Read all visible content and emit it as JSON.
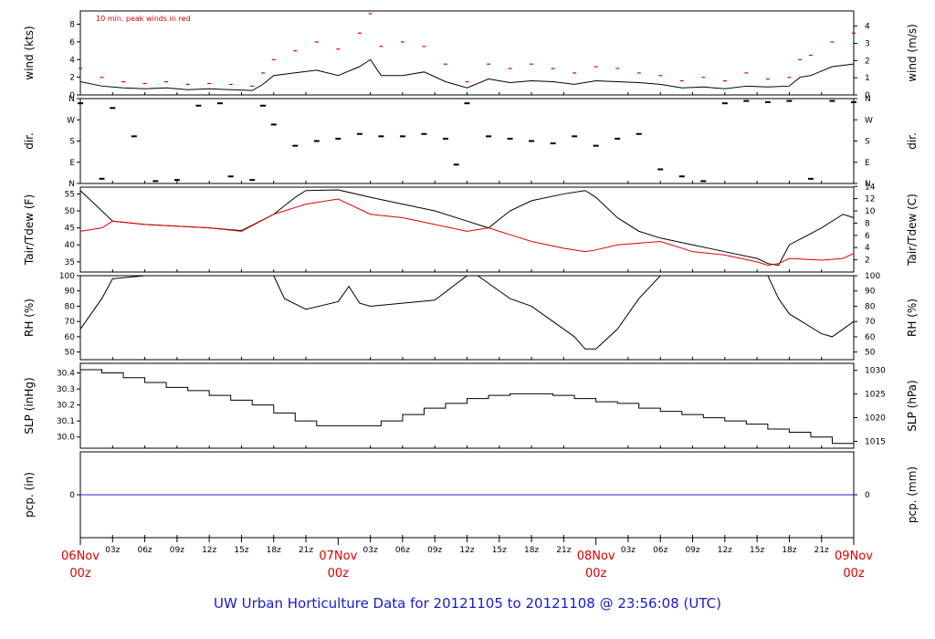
{
  "title": "UW Urban Horticulture Data for 20121105  to  20121108 @ 23:56:08  (UTC)",
  "chart_data": {
    "type": "line",
    "x_axis": {
      "range_hours": [
        0,
        72
      ],
      "hour_ticks": [
        "03z",
        "06z",
        "09z",
        "12z",
        "15z",
        "18z",
        "21z",
        "03z",
        "06z",
        "09z",
        "12z",
        "15z",
        "18z",
        "21z",
        "03z",
        "06z",
        "09z",
        "12z",
        "15z",
        "18z",
        "21z"
      ],
      "hour_tick_positions": [
        3,
        6,
        9,
        12,
        15,
        18,
        21,
        27,
        30,
        33,
        36,
        39,
        42,
        45,
        51,
        54,
        57,
        60,
        63,
        66,
        69
      ],
      "day_labels": [
        {
          "line1": "06Nov",
          "line2": "00z",
          "hour": 0
        },
        {
          "line1": "07Nov",
          "line2": "00z",
          "hour": 24
        },
        {
          "line1": "08Nov",
          "line2": "00z",
          "hour": 48
        },
        {
          "line1": "09Nov",
          "line2": "00z",
          "hour": 72
        }
      ]
    },
    "panels": [
      {
        "id": "wind",
        "ylabel_left": "wind (kts)",
        "ylabel_right": "wind (m/s)",
        "ylim": [
          0,
          9.5
        ],
        "left_ticks": [
          "0",
          "2",
          "4",
          "6",
          "8"
        ],
        "left_tick_values": [
          0,
          2,
          4,
          6,
          8
        ],
        "right_ticks": [
          "0",
          "1",
          "2",
          "3",
          "4"
        ],
        "right_tick_values": [
          0,
          1,
          2,
          3,
          4
        ],
        "annotation": "10 min. peak winds in red",
        "series": [
          {
            "color": "#000000",
            "style": "line",
            "x_hours": [
              0,
              2,
              4,
              6,
              8,
              10,
              12,
              14,
              16,
              17,
              18,
              20,
              22,
              24,
              26,
              27,
              28,
              30,
              32,
              34,
              36,
              38,
              40,
              42,
              44,
              46,
              48,
              50,
              52,
              54,
              56,
              58,
              60,
              62,
              64,
              66,
              67,
              68,
              70,
              72
            ],
            "values": [
              1.5,
              1,
              0.8,
              0.7,
              0.8,
              0.6,
              0.7,
              0.6,
              0.5,
              1.2,
              2.2,
              2.5,
              2.8,
              2.2,
              3.2,
              4,
              2.2,
              2.2,
              2.6,
              1.5,
              0.8,
              1.8,
              1.4,
              1.6,
              1.5,
              1.2,
              1.6,
              1.5,
              1.4,
              1.2,
              0.8,
              0.9,
              0.7,
              1.0,
              0.9,
              1.0,
              2.0,
              2.2,
              3.2,
              3.5
            ]
          },
          {
            "color": "#e00000",
            "style": "dots",
            "x_hours": [
              0,
              2,
              4,
              6,
              8,
              10,
              12,
              14,
              16,
              17,
              18,
              20,
              22,
              24,
              26,
              27,
              28,
              30,
              32,
              34,
              36,
              38,
              40,
              42,
              44,
              46,
              48,
              50,
              52,
              54,
              56,
              58,
              60,
              62,
              64,
              66,
              67,
              68,
              70,
              72
            ],
            "values": [
              3,
              2,
              1.5,
              1.3,
              1.5,
              1.2,
              1.3,
              1.2,
              1,
              2.5,
              4,
              5,
              6,
              5.2,
              7,
              9.2,
              5.5,
              6,
              5.5,
              3.5,
              1.5,
              3.5,
              3,
              3.5,
              3,
              2.5,
              3.2,
              3,
              2.5,
              2.2,
              1.6,
              2,
              1.6,
              2.5,
              1.8,
              2,
              4,
              4.5,
              6,
              7
            ]
          }
        ]
      },
      {
        "id": "dir",
        "ylabel_left": "dir.",
        "ylabel_right": "dir.",
        "ylim": [
          0,
          360
        ],
        "left_ticks": [
          "N",
          "E",
          "S",
          "W",
          "N"
        ],
        "left_tick_values": [
          0,
          90,
          180,
          270,
          360
        ],
        "right_ticks": [
          "N",
          "E",
          "S",
          "W",
          "N"
        ],
        "right_tick_values": [
          0,
          90,
          180,
          270,
          360
        ],
        "series": [
          {
            "color": "#000000",
            "style": "dots",
            "x_hours": [
              0,
              2,
              3,
              5,
              7,
              9,
              11,
              13,
              14,
              16,
              17,
              18,
              20,
              22,
              24,
              26,
              28,
              30,
              32,
              34,
              35,
              36,
              38,
              40,
              42,
              44,
              46,
              48,
              50,
              52,
              54,
              56,
              58,
              60,
              62,
              64,
              66,
              68,
              70,
              72
            ],
            "values": [
              340,
              20,
              320,
              200,
              10,
              15,
              330,
              340,
              30,
              15,
              330,
              250,
              160,
              180,
              190,
              210,
              200,
              200,
              210,
              190,
              80,
              340,
              200,
              190,
              180,
              170,
              200,
              160,
              190,
              210,
              60,
              30,
              10,
              340,
              350,
              345,
              350,
              20,
              350,
              345
            ]
          }
        ]
      },
      {
        "id": "temp",
        "ylabel_left": "Tair/Tdew (F)",
        "ylabel_right": "Tair/Tdew (C)",
        "ylim": [
          32,
          57
        ],
        "left_ticks": [
          "35",
          "40",
          "45",
          "50",
          "55"
        ],
        "left_tick_values": [
          35,
          40,
          45,
          50,
          55
        ],
        "right_ticks": [
          "2",
          "4",
          "6",
          "8",
          "10",
          "12",
          "14"
        ],
        "right_tick_values": [
          2,
          4,
          6,
          8,
          10,
          12,
          14
        ],
        "series": [
          {
            "name": "Tair",
            "color": "#000000",
            "style": "line",
            "x_hours": [
              0,
              2,
              3,
              6,
              9,
              12,
              15,
              18,
              20,
              21,
              24,
              27,
              30,
              33,
              36,
              38,
              40,
              42,
              45,
              47,
              48,
              50,
              52,
              54,
              57,
              60,
              63,
              64,
              65,
              66,
              69,
              71,
              72
            ],
            "values": [
              56,
              50,
              47,
              46,
              45.5,
              45,
              44.2,
              49,
              54,
              56,
              56.2,
              54,
              52,
              50,
              47,
              45,
              50,
              53,
              55,
              56,
              54,
              48,
              44,
              42,
              40,
              38,
              36,
              34.5,
              34,
              40,
              45,
              49,
              48
            ]
          },
          {
            "name": "Tdew",
            "color": "#e00000",
            "style": "line",
            "x_hours": [
              0,
              2,
              3,
              6,
              9,
              12,
              15,
              18,
              20,
              21,
              24,
              27,
              30,
              33,
              36,
              38,
              40,
              42,
              45,
              47,
              48,
              50,
              52,
              54,
              57,
              60,
              63,
              64,
              65,
              66,
              69,
              71,
              72
            ],
            "values": [
              44,
              45,
              47,
              46,
              45.5,
              45,
              44,
              49,
              51,
              52,
              53.5,
              49,
              48,
              46,
              44,
              45,
              43,
              41,
              39,
              38,
              38.5,
              40,
              40.5,
              41,
              38,
              37,
              35,
              34,
              34.5,
              36,
              35.5,
              36,
              37.5
            ]
          }
        ]
      },
      {
        "id": "rh",
        "ylabel_left": "RH (%)",
        "ylabel_right": "RH (%)",
        "ylim": [
          45,
          100
        ],
        "left_ticks": [
          "50",
          "60",
          "70",
          "80",
          "90",
          "100"
        ],
        "left_tick_values": [
          50,
          60,
          70,
          80,
          90,
          100
        ],
        "right_ticks": [
          "50",
          "60",
          "70",
          "80",
          "90",
          "100"
        ],
        "right_tick_values": [
          50,
          60,
          70,
          80,
          90,
          100
        ],
        "series": [
          {
            "color": "#000000",
            "style": "line",
            "x_hours": [
              0,
              1,
              2,
              3,
              6,
              9,
              12,
              15,
              17,
              18,
              19,
              21,
              24,
              25,
              26,
              27,
              30,
              33,
              36,
              37,
              39,
              40,
              42,
              44,
              46,
              47,
              48,
              50,
              52,
              54,
              57,
              60,
              63,
              64,
              65,
              66,
              69,
              70,
              72
            ],
            "values": [
              65,
              75,
              85,
              98,
              100,
              100,
              100,
              100,
              100,
              100,
              85,
              78,
              83,
              93,
              82,
              80,
              82,
              84,
              100,
              100,
              90,
              85,
              80,
              70,
              60,
              52,
              52,
              65,
              85,
              100,
              100,
              100,
              100,
              100,
              85,
              75,
              62,
              60,
              70
            ]
          }
        ]
      },
      {
        "id": "slp",
        "ylabel_left": "SLP (inHg)",
        "ylabel_right": "SLP (hPa)",
        "ylim": [
          29.93,
          30.46
        ],
        "left_ticks": [
          "30.0",
          "30.1",
          "30.2",
          "30.3",
          "30.4"
        ],
        "left_tick_values": [
          30.0,
          30.1,
          30.2,
          30.3,
          30.4
        ],
        "right_ticks": [
          "1015",
          "1020",
          "1025",
          "1030"
        ],
        "right_tick_values": [
          1015,
          1020,
          1025,
          1030
        ],
        "series": [
          {
            "color": "#000000",
            "style": "step",
            "x_hours": [
              0,
              2,
              4,
              6,
              8,
              10,
              12,
              14,
              16,
              18,
              20,
              22,
              24,
              26,
              28,
              30,
              32,
              34,
              36,
              38,
              40,
              42,
              44,
              46,
              48,
              50,
              52,
              54,
              56,
              58,
              60,
              62,
              64,
              66,
              68,
              70,
              72
            ],
            "values": [
              30.42,
              30.4,
              30.37,
              30.34,
              30.31,
              30.29,
              30.26,
              30.23,
              30.2,
              30.15,
              30.1,
              30.07,
              30.07,
              30.07,
              30.1,
              30.14,
              30.18,
              30.21,
              30.24,
              30.26,
              30.27,
              30.27,
              30.26,
              30.24,
              30.22,
              30.21,
              30.18,
              30.16,
              30.14,
              30.12,
              30.1,
              30.08,
              30.05,
              30.03,
              30.0,
              29.96,
              29.96
            ]
          }
        ]
      },
      {
        "id": "pcp",
        "ylabel_left": "pcp. (in)",
        "ylabel_right": "pcp. (mm)",
        "ylim": [
          -1,
          1
        ],
        "left_ticks": [
          "0"
        ],
        "left_tick_values": [
          0
        ],
        "right_ticks": [
          "0"
        ],
        "right_tick_values": [
          0
        ],
        "series": [
          {
            "color": "#2222cc",
            "style": "line",
            "x_hours": [
              0,
              72
            ],
            "values": [
              0,
              0
            ]
          }
        ]
      }
    ]
  }
}
